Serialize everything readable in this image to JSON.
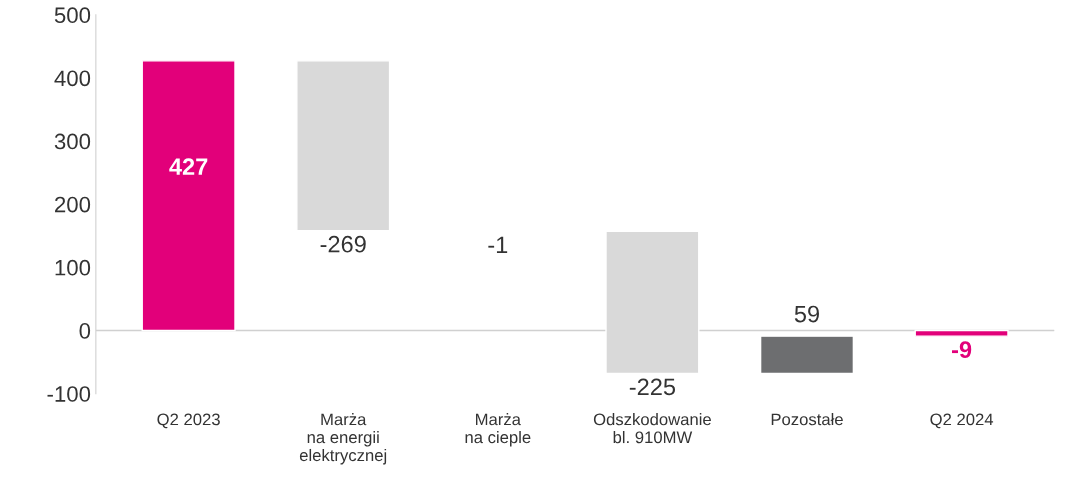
{
  "chart_data": {
    "type": "bar",
    "categories": [
      "Q2 2023",
      "Marża\nna energii\nelektrycznej",
      "Marża\nna cieple",
      "Odszkodowanie\nbl. 910MW",
      "Pozostałe",
      "Q2 2024"
    ],
    "values": [
      427,
      -269,
      -1,
      -225,
      59,
      -9
    ],
    "base": [
      0,
      427,
      158,
      157,
      -68,
      0
    ],
    "colors": [
      "#e2007a",
      "#d9d9d9",
      "#d9d9d9",
      "#d9d9d9",
      "#6d6e70",
      "#e2007a"
    ],
    "ylim": [
      -100,
      500
    ],
    "yticks": [
      -100,
      0,
      100,
      200,
      300,
      400,
      500
    ],
    "ref_lines": [
      {
        "axis": "y",
        "value": 0,
        "color": "#d0d0d0"
      }
    ],
    "data_labels": true,
    "grid": false,
    "legend": false
  }
}
